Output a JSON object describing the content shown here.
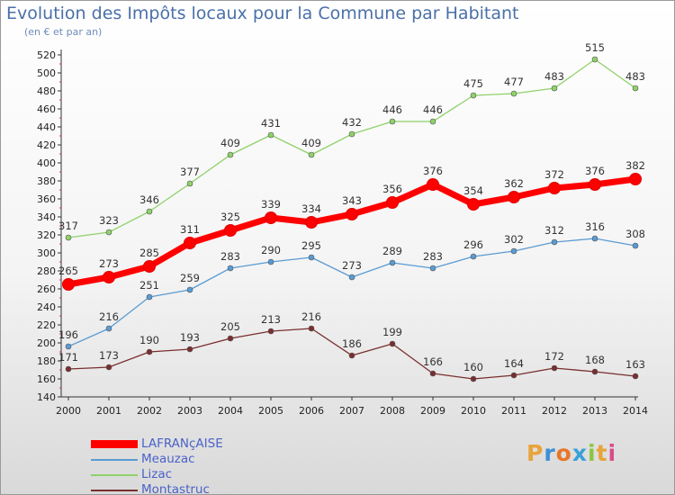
{
  "header": {
    "title": "Evolution des Impôts locaux pour la Commune par Habitant",
    "subtitle": "(en € et par an)"
  },
  "logo": {
    "text": "Proxiti",
    "colors": [
      "#e8a33a",
      "#3d8fd6",
      "#e8762a",
      "#3aa0d8",
      "#8cc63f",
      "#e8a33a",
      "#d94c8a"
    ]
  },
  "chart_data": {
    "type": "line",
    "x": [
      "2000",
      "2001",
      "2002",
      "2003",
      "2004",
      "2005",
      "2006",
      "2007",
      "2008",
      "2009",
      "2010",
      "2011",
      "2012",
      "2013",
      "2014"
    ],
    "ylim": [
      140,
      520
    ],
    "yticks": [
      140,
      160,
      180,
      200,
      220,
      240,
      260,
      280,
      300,
      320,
      340,
      360,
      380,
      400,
      420,
      440,
      460,
      480,
      500,
      520
    ],
    "grid": false,
    "legend_position": "bottom-left",
    "series": [
      {
        "name": "LAFRANçAISE",
        "color": "#ff0000",
        "emphasis": true,
        "values": [
          265,
          273,
          285,
          311,
          325,
          339,
          334,
          343,
          356,
          376,
          354,
          362,
          372,
          376,
          382
        ]
      },
      {
        "name": "Meauzac",
        "color": "#5a9bd3",
        "values": [
          196,
          216,
          251,
          259,
          283,
          290,
          295,
          273,
          289,
          283,
          296,
          302,
          312,
          316,
          308
        ]
      },
      {
        "name": "Lizac",
        "color": "#8fd16a",
        "values": [
          317,
          323,
          346,
          377,
          409,
          431,
          409,
          432,
          446,
          446,
          475,
          477,
          483,
          515,
          483
        ]
      },
      {
        "name": "Montastruc",
        "color": "#7a2e2e",
        "values": [
          171,
          173,
          190,
          193,
          205,
          213,
          216,
          186,
          199,
          166,
          160,
          164,
          172,
          168,
          163
        ]
      }
    ]
  }
}
